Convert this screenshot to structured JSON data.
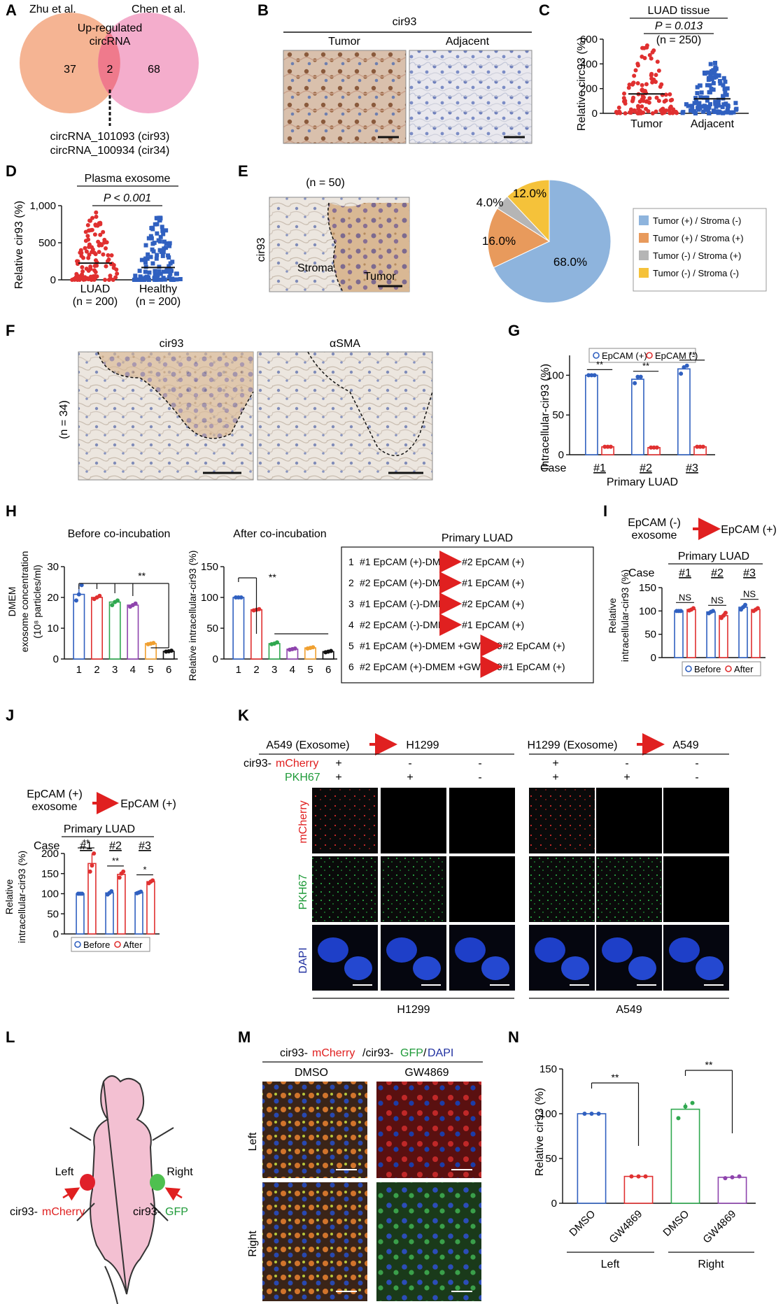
{
  "colors": {
    "red": "#e03030",
    "blue": "#3060c0",
    "green": "#2fa84f",
    "purple": "#8e44ad",
    "orange": "#f0a030",
    "black": "#111111",
    "pink": "#f3a4c6",
    "salmon": "#f5b493",
    "pie_blue": "#8eb4dd",
    "pie_orange": "#e89a5c",
    "pie_gray": "#b5b5b5",
    "pie_yellow": "#f5c23a"
  },
  "panelA": {
    "letter": "A",
    "left_label": "Zhu et al.",
    "right_label": "Chen et al.",
    "center_label_line1": "Up-regulated",
    "center_label_line2": "circRNA",
    "left_count": "37",
    "overlap_count": "2",
    "right_count": "68",
    "circ1": "circRNA_101093 (cir93)",
    "circ2": "circRNA_100934 (cir34)"
  },
  "panelB": {
    "letter": "B",
    "title": "cir93",
    "left": "Tumor",
    "right": "Adjacent"
  },
  "panelC": {
    "letter": "C",
    "title": "LUAD tissue",
    "pval": "P = 0.013",
    "n": "(n = 250)",
    "ylabel": "Relative circ93 (%)",
    "yticks": [
      "0",
      "200",
      "400",
      "600"
    ],
    "groups": [
      "Tumor",
      "Adjacent"
    ]
  },
  "panelD": {
    "letter": "D",
    "title": "Plasma exosome",
    "pval": "P < 0.001",
    "ylabel": "Relative cir93 (%)",
    "yticks": [
      "0",
      "500",
      "1,000"
    ],
    "groups": [
      "LUAD",
      "Healthy"
    ],
    "ns": [
      "(n = 200)",
      "(n = 200)"
    ]
  },
  "panelE": {
    "letter": "E",
    "n": "(n = 50)",
    "side": "cir93",
    "stroma": "Stroma",
    "tumor": "Tumor",
    "pie_labels": [
      "68.0%",
      "16.0%",
      "4.0%",
      "12.0%"
    ],
    "legend": [
      "Tumor (+) / Stroma (-)",
      "Tumor (+) / Stroma (+)",
      "Tumor (-) / Stroma (+)",
      "Tumor (-) / Stroma (-)"
    ]
  },
  "panelF": {
    "letter": "F",
    "left": "cir93",
    "right": "αSMA",
    "n": "(n = 34)"
  },
  "panelG": {
    "letter": "G",
    "legend": [
      "EpCAM (+)",
      "EpCAM (-)"
    ],
    "ylabel": "Intracellular-cir93 (%)",
    "yticks": [
      "0",
      "50",
      "100"
    ],
    "case": "Case",
    "cases": [
      "#1",
      "#2",
      "#3"
    ],
    "xtitle": "Primary LUAD",
    "sig": [
      "**",
      "**",
      "**"
    ]
  },
  "panelH": {
    "letter": "H",
    "t1": "Before co-incubation",
    "t2": "After co-incubation",
    "ylabel1_line1": "DMEM",
    "ylabel1_line2": "exosome concentration",
    "ylabel1_line3": "(10⁸ particles/ml)",
    "ylabel2": "Relative intracellular-cir93 (%)",
    "yticks1": [
      "0",
      "10",
      "20",
      "30"
    ],
    "yticks2": [
      "0",
      "50",
      "100",
      "150"
    ],
    "x": [
      "1",
      "2",
      "3",
      "4",
      "5",
      "6"
    ],
    "sig": "**",
    "box_title": "Primary LUAD",
    "rows": [
      {
        "n": "1",
        "a": "#1 EpCAM (+)-DMEM",
        "b": "#2 EpCAM (+)"
      },
      {
        "n": "2",
        "a": "#2 EpCAM (+)-DMEM",
        "b": "#1 EpCAM (+)"
      },
      {
        "n": "3",
        "a": "#1 EpCAM (-)-DMEM",
        "b": "#2 EpCAM (+)"
      },
      {
        "n": "4",
        "a": "#2 EpCAM (-)-DMEM",
        "b": "#1 EpCAM (+)"
      },
      {
        "n": "5",
        "a": "#1 EpCAM (+)-DMEM +GW4869",
        "b": "#2 EpCAM (+)"
      },
      {
        "n": "6",
        "a": "#2 EpCAM (+)-DMEM +GW4869",
        "b": "#1 EpCAM (+)"
      }
    ]
  },
  "panelI": {
    "letter": "I",
    "from_line1": "EpCAM (-)",
    "from_line2": "exosome",
    "to": "EpCAM (+)",
    "title": "Primary LUAD",
    "case": "Case",
    "cases": [
      "#1",
      "#2",
      "#3"
    ],
    "ylabel_line1": "Relative",
    "ylabel_line2": "intracellular-cir93 (%)",
    "yticks": [
      "0",
      "50",
      "100",
      "150"
    ],
    "sig": [
      "NS",
      "NS",
      "NS"
    ],
    "legend": [
      "Before",
      "After"
    ]
  },
  "panelJ": {
    "letter": "J",
    "from_line1": "EpCAM (+)",
    "from_line2": "exosome",
    "to": "EpCAM (+)",
    "title": "Primary   LUAD",
    "case": "Case",
    "cases": [
      "#1",
      "#2",
      "#3"
    ],
    "ylabel_line1": "Relative",
    "ylabel_line2": "intracellular-cir93 (%)",
    "yticks": [
      "0",
      "50",
      "100",
      "150",
      "200"
    ],
    "sig": [
      "**",
      "**",
      "*"
    ],
    "legend": [
      "Before",
      "After"
    ]
  },
  "panelK": {
    "letter": "K",
    "h1": "A549 (Exosome)",
    "h1b": "H1299",
    "h2": "H1299 (Exosome)",
    "h2b": "A549",
    "row1_a": "cir93-",
    "row1_b": "mCherry",
    "row2": "PKH67",
    "row1_vals": [
      "+",
      "-",
      "-",
      "+",
      "-",
      "-"
    ],
    "row2_vals": [
      "+",
      "+",
      "-",
      "+",
      "+",
      "-"
    ],
    "side": [
      "mCherry",
      "PKH67",
      "DAPI"
    ],
    "bottom": [
      "H1299",
      "A549"
    ]
  },
  "panelL": {
    "letter": "L",
    "left": "Left",
    "right": "Right",
    "lab_left_a": "cir93-",
    "lab_left_b": "mCherry",
    "lab_right_a": "cir93-",
    "lab_right_b": "GFP"
  },
  "panelM": {
    "letter": "M",
    "t_a": "cir93-",
    "t_b": "mCherry",
    "t_c": "/cir93-",
    "t_d": "GFP",
    "t_e": "/",
    "t_f": "DAPI",
    "cols": [
      "DMSO",
      "GW4869"
    ],
    "rows": [
      "Left",
      "Right"
    ]
  },
  "panelN": {
    "letter": "N",
    "ylabel": "Relative cir93 (%)",
    "yticks": [
      "0",
      "50",
      "100",
      "150"
    ],
    "x": [
      "DMSO",
      "GW4869",
      "DMSO",
      "GW4869"
    ],
    "groups": [
      "Left",
      "Right"
    ],
    "sig": [
      "**",
      "**"
    ]
  },
  "chart_data": [
    {
      "type": "scatter",
      "panel": "C",
      "title": "LUAD tissue",
      "ylabel": "Relative circ93 (%)",
      "ylim": [
        0,
        600
      ],
      "categories": [
        "Tumor",
        "Adjacent"
      ],
      "series": [
        {
          "name": "Tumor",
          "mean": 160,
          "max": 595
        },
        {
          "name": "Adjacent",
          "mean": 120,
          "max": 425
        }
      ]
    },
    {
      "type": "scatter",
      "panel": "D",
      "title": "Plasma exosome",
      "ylabel": "Relative cir93 (%)",
      "ylim": [
        0,
        1000
      ],
      "categories": [
        "LUAD",
        "Healthy"
      ],
      "series": [
        {
          "name": "LUAD",
          "mean": 230,
          "max": 930
        },
        {
          "name": "Healthy",
          "mean": 170,
          "max": 860
        }
      ]
    },
    {
      "type": "pie",
      "panel": "E",
      "categories": [
        "Tumor (+) / Stroma (-)",
        "Tumor (+) / Stroma (+)",
        "Tumor (-) / Stroma (+)",
        "Tumor (-) / Stroma (-)"
      ],
      "values": [
        68.0,
        16.0,
        4.0,
        12.0
      ]
    },
    {
      "type": "bar",
      "panel": "G",
      "ylabel": "Intracellular-cir93 (%)",
      "ylim": [
        0,
        125
      ],
      "categories": [
        "#1",
        "#2",
        "#3"
      ],
      "series": [
        {
          "name": "EpCAM (+)",
          "values": [
            100,
            95,
            108
          ],
          "points": [
            [
              100,
              100,
              100
            ],
            [
              90,
              98,
              98
            ],
            [
              102,
              110,
              112
            ]
          ]
        },
        {
          "name": "EpCAM (-)",
          "values": [
            10,
            9,
            10
          ],
          "points": [
            [
              10,
              10,
              10
            ],
            [
              9,
              9,
              9
            ],
            [
              10,
              10,
              10
            ]
          ]
        }
      ]
    },
    {
      "type": "bar",
      "panel": "H-before",
      "title": "Before co-incubation",
      "ylabel": "DMEM exosome concentration (10⁸ particles/ml)",
      "ylim": [
        0,
        30
      ],
      "categories": [
        "1",
        "2",
        "3",
        "4",
        "5",
        "6"
      ],
      "values": [
        21,
        20,
        18.5,
        17.5,
        5,
        2.5
      ],
      "points": [
        [
          19,
          21,
          24
        ],
        [
          19.5,
          20,
          20.5
        ],
        [
          17.5,
          18.5,
          19
        ],
        [
          17,
          17.5,
          18
        ],
        [
          4.8,
          5,
          5.2
        ],
        [
          2.4,
          2.5,
          2.7
        ]
      ]
    },
    {
      "type": "bar",
      "panel": "H-after",
      "title": "After co-incubation",
      "ylabel": "Relative intracellular-cir93 (%)",
      "ylim": [
        0,
        150
      ],
      "categories": [
        "1",
        "2",
        "3",
        "4",
        "5",
        "6"
      ],
      "values": [
        100,
        80,
        25,
        16,
        18,
        12
      ],
      "points": [
        [
          100,
          100,
          100
        ],
        [
          79,
          80,
          81
        ],
        [
          24,
          25,
          27
        ],
        [
          15,
          16,
          17
        ],
        [
          17,
          18,
          19
        ],
        [
          11,
          12,
          13
        ]
      ]
    },
    {
      "type": "bar",
      "panel": "I",
      "ylabel": "Relative intracellular-cir93 (%)",
      "ylim": [
        0,
        150
      ],
      "categories": [
        "#1",
        "#2",
        "#3"
      ],
      "series": [
        {
          "name": "Before",
          "values": [
            100,
            98,
            108
          ],
          "points": [
            [
              100,
              100,
              100
            ],
            [
              95,
              98,
              100
            ],
            [
              103,
              108,
              113
            ]
          ]
        },
        {
          "name": "After",
          "values": [
            103,
            90,
            103
          ],
          "points": [
            [
              101,
              103,
              106
            ],
            [
              85,
              90,
              96
            ],
            [
              100,
              103,
              106
            ]
          ]
        }
      ]
    },
    {
      "type": "bar",
      "panel": "J",
      "ylabel": "Relative intracellular-cir93 (%)",
      "ylim": [
        0,
        200
      ],
      "categories": [
        "#1",
        "#2",
        "#3"
      ],
      "series": [
        {
          "name": "Before",
          "values": [
            100,
            102,
            103
          ],
          "points": [
            [
              100,
              100,
              100
            ],
            [
              98,
              102,
              106
            ],
            [
              101,
              103,
              105
            ]
          ]
        },
        {
          "name": "After",
          "values": [
            175,
            148,
            130
          ],
          "points": [
            [
              155,
              170,
              200
            ],
            [
              140,
              150,
              155
            ],
            [
              126,
              130,
              133
            ]
          ]
        }
      ]
    },
    {
      "type": "bar",
      "panel": "N",
      "ylabel": "Relative cir93 (%)",
      "ylim": [
        0,
        150
      ],
      "categories": [
        "DMSO",
        "GW4869",
        "DMSO",
        "GW4869"
      ],
      "values": [
        100,
        30,
        105,
        29
      ],
      "points": [
        [
          100,
          100,
          100
        ],
        [
          30,
          30,
          30
        ],
        [
          95,
          108,
          112
        ],
        [
          28,
          29,
          30
        ]
      ]
    }
  ]
}
